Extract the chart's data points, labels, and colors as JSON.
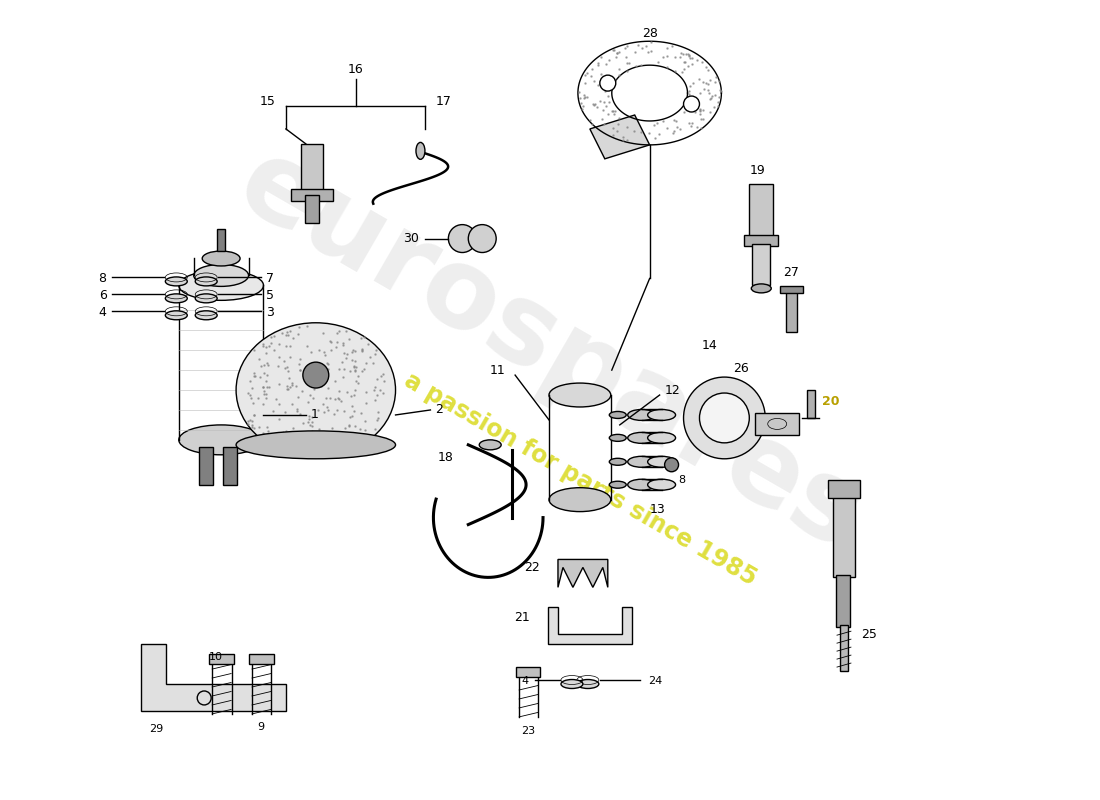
{
  "bg_color": "#ffffff",
  "line_color": "#000000",
  "watermark1": "eurospares",
  "watermark2": "a passion for parts since 1985",
  "wm1_color": "#c8c8c8",
  "wm2_color": "#d4d400",
  "fig_width": 11.0,
  "fig_height": 8.0,
  "dpi": 100,
  "lw": 1.0,
  "xlim": [
    0,
    11
  ],
  "ylim": [
    0,
    8
  ],
  "label20_color": "#b8a000"
}
